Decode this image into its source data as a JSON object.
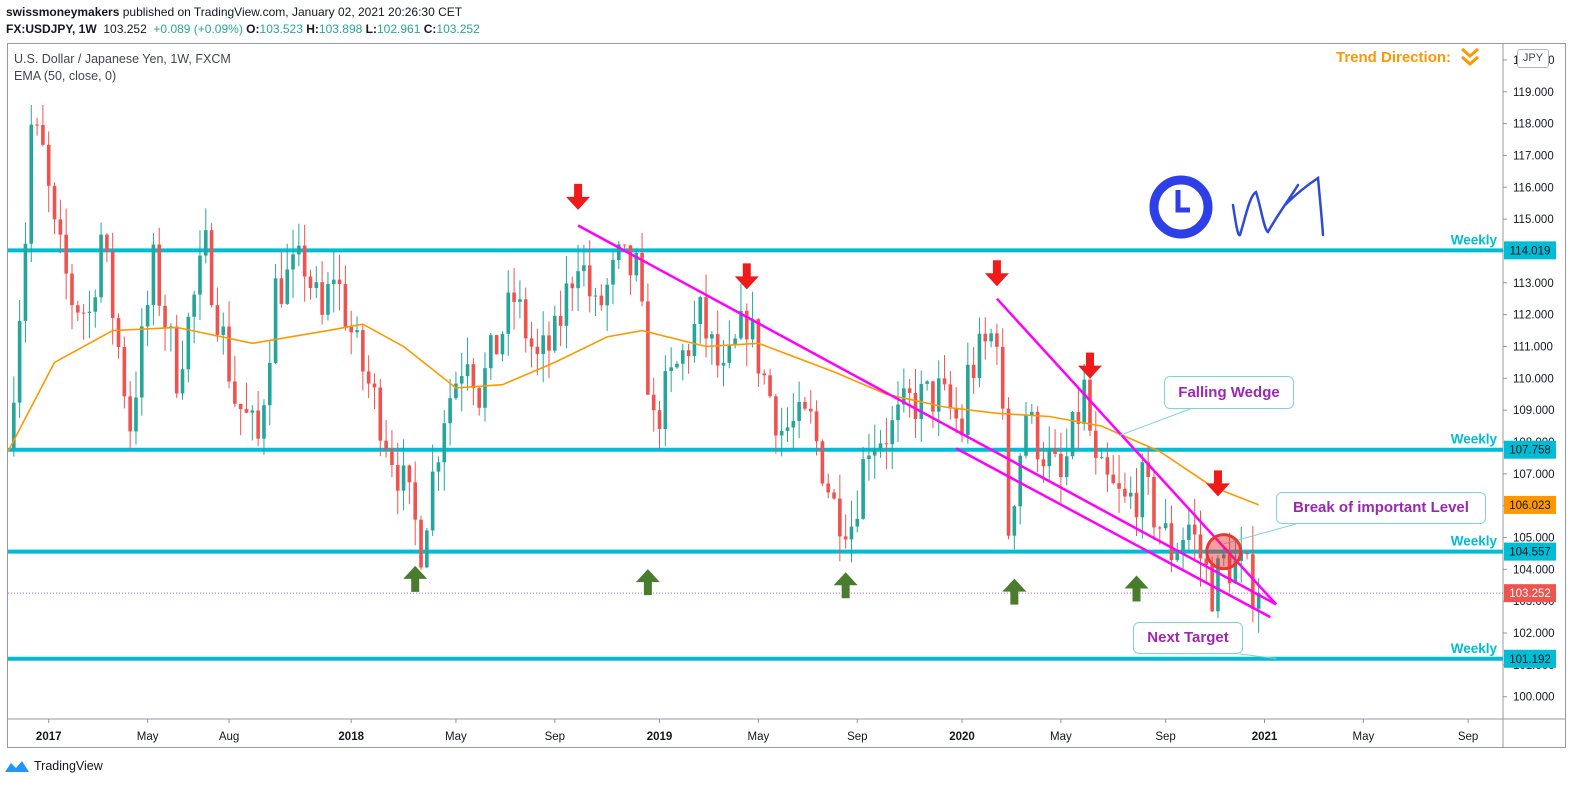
{
  "header": {
    "author": "swissmoneymakers",
    "published_text": "published on TradingView.com, January 02, 2021 20:26:30 CET",
    "symbol": "FX:USDJPY, 1W",
    "last": "103.252",
    "change": "+0.089 (+0.09%)",
    "open_label": "O:",
    "open": "103.523",
    "high_label": "H:",
    "high": "103.898",
    "low_label": "L:",
    "low": "102.961",
    "close_label": "C:",
    "close": "103.252"
  },
  "legend": {
    "title": "U.S. Dollar / Japanese Yen, 1W, FXCM",
    "indicator": "EMA (50, close, 0)"
  },
  "currency_label": "JPY",
  "trend_direction_label": "Trend Direction:",
  "footer_brand": "TradingView",
  "colors": {
    "up": "#26a69a",
    "down": "#ef5350",
    "ema": "#ff9800",
    "level": "#00bcd4",
    "trendline": "#ff00ff",
    "annotation_text": "#9c27b0",
    "arrow_down": "#f01a1a",
    "arrow_up": "#4a7c2e",
    "clock": "#2f3fe8"
  },
  "chart_data": {
    "type": "candlestick",
    "symbol": "USDJPY",
    "timeframe": "1W",
    "ylim": [
      99.3,
      120.5
    ],
    "x_range": [
      "2016-11-14",
      "2021-10-18"
    ],
    "y_ticks": [
      "100.000",
      "101.000",
      "102.000",
      "103.000",
      "104.000",
      "105.000",
      "106.000",
      "107.000",
      "108.000",
      "109.000",
      "110.000",
      "111.000",
      "112.000",
      "113.000",
      "114.000",
      "115.000",
      "116.000",
      "117.000",
      "118.000",
      "119.000",
      "120.000"
    ],
    "x_ticks": [
      {
        "label": "2017",
        "date": "2017-01-02"
      },
      {
        "label": "May",
        "date": "2017-05-01"
      },
      {
        "label": "Aug",
        "date": "2017-08-07"
      },
      {
        "label": "2018",
        "date": "2018-01-01"
      },
      {
        "label": "May",
        "date": "2018-05-07"
      },
      {
        "label": "Sep",
        "date": "2018-09-03"
      },
      {
        "label": "2019",
        "date": "2019-01-07"
      },
      {
        "label": "May",
        "date": "2019-05-06"
      },
      {
        "label": "Sep",
        "date": "2019-09-02"
      },
      {
        "label": "2020",
        "date": "2020-01-06"
      },
      {
        "label": "May",
        "date": "2020-05-04"
      },
      {
        "label": "Sep",
        "date": "2020-09-07"
      },
      {
        "label": "2021",
        "date": "2021-01-04"
      },
      {
        "label": "May",
        "date": "2021-05-03"
      },
      {
        "label": "Sep",
        "date": "2021-09-06"
      }
    ],
    "anchors": [
      [
        "2016-11-14",
        107.8
      ],
      [
        "2016-12-05",
        114.5
      ],
      [
        "2016-12-12",
        117.9
      ],
      [
        "2016-12-26",
        117.0
      ],
      [
        "2017-01-09",
        114.5
      ],
      [
        "2017-01-30",
        112.5
      ],
      [
        "2017-02-20",
        112.0
      ],
      [
        "2017-03-06",
        114.5
      ],
      [
        "2017-04-10",
        108.6
      ],
      [
        "2017-05-08",
        113.5
      ],
      [
        "2017-06-05",
        110.2
      ],
      [
        "2017-07-10",
        114.0
      ],
      [
        "2017-08-14",
        109.4
      ],
      [
        "2017-09-11",
        108.0
      ],
      [
        "2017-10-02",
        112.8
      ],
      [
        "2017-11-06",
        113.6
      ],
      [
        "2017-11-27",
        111.8
      ],
      [
        "2017-12-11",
        113.4
      ],
      [
        "2018-01-08",
        110.8
      ],
      [
        "2018-02-05",
        108.8
      ],
      [
        "2018-03-05",
        106.6
      ],
      [
        "2018-03-26",
        104.8
      ],
      [
        "2018-04-23",
        109.0
      ],
      [
        "2018-05-21",
        111.0
      ],
      [
        "2018-06-04",
        109.6
      ],
      [
        "2018-07-16",
        112.5
      ],
      [
        "2018-08-13",
        110.5
      ],
      [
        "2018-09-03",
        111.2
      ],
      [
        "2018-10-01",
        114.0
      ],
      [
        "2018-10-22",
        112.0
      ],
      [
        "2018-11-19",
        113.6
      ],
      [
        "2018-12-10",
        113.3
      ],
      [
        "2018-12-31",
        108.5
      ],
      [
        "2019-01-14",
        109.5
      ],
      [
        "2019-02-25",
        111.9
      ],
      [
        "2019-03-25",
        109.9
      ],
      [
        "2019-04-22",
        111.9
      ],
      [
        "2019-05-13",
        110.0
      ],
      [
        "2019-06-03",
        108.4
      ],
      [
        "2019-07-08",
        108.6
      ],
      [
        "2019-08-05",
        106.0
      ],
      [
        "2019-08-26",
        105.5
      ],
      [
        "2019-09-16",
        108.1
      ],
      [
        "2019-10-14",
        108.4
      ],
      [
        "2019-11-04",
        109.2
      ],
      [
        "2019-12-09",
        109.5
      ],
      [
        "2020-01-06",
        108.4
      ],
      [
        "2020-01-13",
        110.1
      ],
      [
        "2020-02-17",
        111.6
      ],
      [
        "2020-03-02",
        105.3
      ],
      [
        "2020-03-23",
        109.0
      ],
      [
        "2020-03-30",
        108.4
      ],
      [
        "2020-05-04",
        106.7
      ],
      [
        "2020-06-01",
        109.6
      ],
      [
        "2020-06-15",
        107.0
      ],
      [
        "2020-07-20",
        106.0
      ],
      [
        "2020-08-10",
        106.6
      ],
      [
        "2020-09-14",
        104.6
      ],
      [
        "2020-10-05",
        105.4
      ],
      [
        "2020-11-02",
        103.4
      ],
      [
        "2020-11-16",
        104.2
      ],
      [
        "2020-12-07",
        104.0
      ],
      [
        "2020-12-28",
        103.25
      ]
    ],
    "ema": {
      "name": "EMA (50, close, 0)",
      "points": [
        [
          "2016-11-14",
          107.7
        ],
        [
          "2017-01-09",
          110.5
        ],
        [
          "2017-03-20",
          111.5
        ],
        [
          "2017-06-05",
          111.6
        ],
        [
          "2017-09-04",
          111.1
        ],
        [
          "2017-12-04",
          111.5
        ],
        [
          "2018-01-15",
          111.7
        ],
        [
          "2018-03-05",
          111.0
        ],
        [
          "2018-05-07",
          109.7
        ],
        [
          "2018-07-02",
          109.8
        ],
        [
          "2018-09-03",
          110.5
        ],
        [
          "2018-11-05",
          111.3
        ],
        [
          "2018-12-17",
          111.5
        ],
        [
          "2019-03-04",
          111.0
        ],
        [
          "2019-05-06",
          111.1
        ],
        [
          "2019-08-05",
          110.2
        ],
        [
          "2019-10-07",
          109.5
        ],
        [
          "2019-12-16",
          109.1
        ],
        [
          "2020-02-17",
          108.9
        ],
        [
          "2020-04-20",
          108.8
        ],
        [
          "2020-06-22",
          108.5
        ],
        [
          "2020-08-31",
          107.7
        ],
        [
          "2020-11-02",
          106.6
        ],
        [
          "2020-12-28",
          106.023
        ]
      ]
    },
    "horizontal_levels": [
      {
        "label": "Weekly",
        "value": 114.019,
        "price_tag": "114.019"
      },
      {
        "label": "Weekly",
        "value": 107.758,
        "price_tag": "107.758"
      },
      {
        "label": "Weekly",
        "value": 104.557,
        "price_tag": "104.557"
      },
      {
        "label": "Weekly",
        "value": 101.192,
        "price_tag": "101.192"
      }
    ],
    "price_tags": [
      {
        "value": 106.023,
        "text": "106.023",
        "color": "#ff9800"
      },
      {
        "value": 103.252,
        "text": "103.252",
        "color": "#ef5350"
      }
    ],
    "current_price": 103.252,
    "trendlines": [
      {
        "from": [
          "2018-10-01",
          114.8
        ],
        "to": [
          "2021-01-18",
          102.9
        ]
      },
      {
        "from": [
          "2020-02-17",
          112.5
        ],
        "to": [
          "2021-01-18",
          102.9
        ]
      },
      {
        "from": [
          "2019-12-30",
          107.8
        ],
        "to": [
          "2021-01-11",
          102.5
        ]
      }
    ],
    "arrows_down": [
      [
        "2018-10-01",
        115.7
      ],
      [
        "2019-04-22",
        113.2
      ],
      [
        "2020-02-17",
        113.3
      ],
      [
        "2020-06-08",
        110.4
      ],
      [
        "2020-11-09",
        106.7
      ]
    ],
    "arrows_up": [
      [
        "2018-03-19",
        103.7
      ],
      [
        "2018-12-24",
        103.6
      ],
      [
        "2019-08-19",
        103.5
      ],
      [
        "2020-03-09",
        103.3
      ],
      [
        "2020-08-03",
        103.4
      ]
    ],
    "annotations": [
      {
        "text": "Falling Wedge",
        "anchor": [
          "2020-07-13",
          108.2
        ]
      },
      {
        "text": "Break of important Level",
        "anchor": [
          "2020-11-16",
          104.8
        ]
      },
      {
        "text": "Next Target",
        "anchor": [
          "2021-01-18",
          101.2
        ]
      }
    ]
  }
}
